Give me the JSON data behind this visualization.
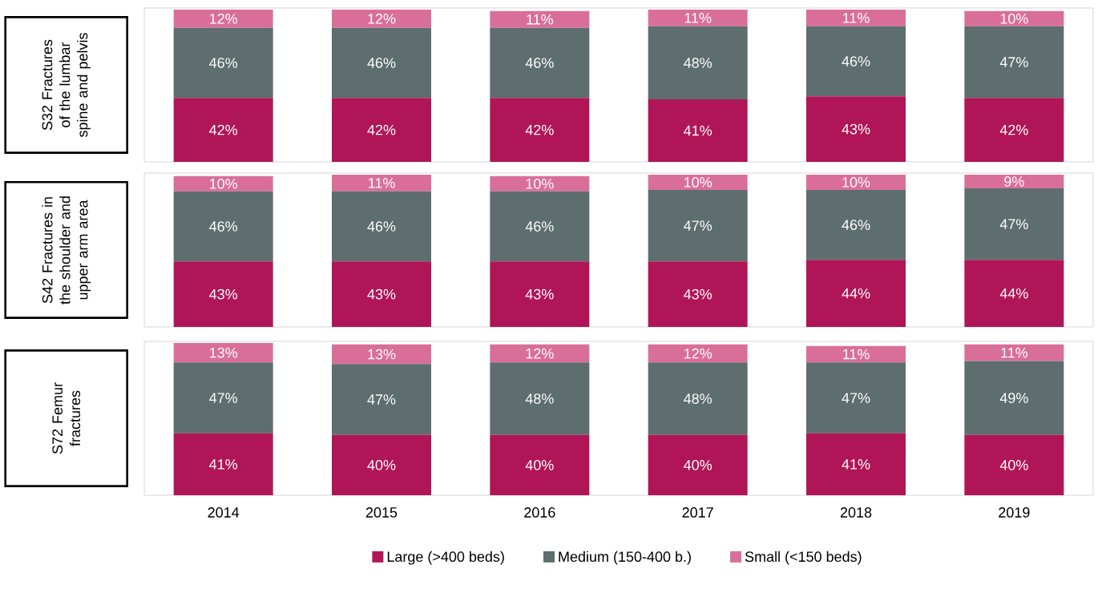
{
  "chart_data": [
    {
      "type": "bar",
      "stacked": true,
      "ylabel": "S32 Fractures of the lumbar spine and pelvis",
      "categories": [
        "2014",
        "2015",
        "2016",
        "2017",
        "2018",
        "2019"
      ],
      "tick_labels": false,
      "series": [
        {
          "color": "#b01657",
          "values": [
            42,
            42,
            42,
            41,
            43,
            42
          ],
          "value_labels": [
            "42%",
            "42%",
            "42%",
            "41%",
            "43%",
            "42%"
          ]
        },
        {
          "color": "#5e6d6d",
          "values": [
            46,
            46,
            46,
            48,
            46,
            47
          ],
          "value_labels": [
            "46%",
            "46%",
            "46%",
            "48%",
            "46%",
            "47%"
          ]
        },
        {
          "color": "#d96f99",
          "values": [
            12,
            12,
            11,
            11,
            11,
            10
          ],
          "value_labels": [
            "12%",
            "12%",
            "11%",
            "11%",
            "11%",
            "10%"
          ]
        }
      ]
    },
    {
      "type": "bar",
      "stacked": true,
      "ylabel": "S42 Fractures in the shoulder and upper arm area",
      "categories": [
        "2014",
        "2015",
        "2016",
        "2017",
        "2018",
        "2019"
      ],
      "tick_labels": false,
      "series": [
        {
          "color": "#b01657",
          "values": [
            43,
            43,
            43,
            43,
            44,
            44
          ],
          "value_labels": [
            "43%",
            "43%",
            "43%",
            "43%",
            "44%",
            "44%"
          ]
        },
        {
          "color": "#5e6d6d",
          "values": [
            46,
            46,
            46,
            47,
            46,
            47
          ],
          "value_labels": [
            "46%",
            "46%",
            "46%",
            "47%",
            "46%",
            "47%"
          ]
        },
        {
          "color": "#d96f99",
          "values": [
            10,
            11,
            10,
            10,
            10,
            9
          ],
          "value_labels": [
            "10%",
            "11%",
            "10%",
            "10%",
            "10%",
            "9%"
          ]
        }
      ]
    },
    {
      "type": "bar",
      "stacked": true,
      "ylabel": "S72 Femur fractures",
      "categories": [
        "2014",
        "2015",
        "2016",
        "2017",
        "2018",
        "2019"
      ],
      "tick_labels": "x",
      "legend": "bottom",
      "series": [
        {
          "name": "Large (>400 beds)",
          "color": "#b01657",
          "values": [
            41,
            40,
            40,
            40,
            41,
            40
          ],
          "value_labels": [
            "41%",
            "40%",
            "40%",
            "40%",
            "41%",
            "40%"
          ]
        },
        {
          "name": "Medium (150-400 b.)",
          "color": "#5e6d6d",
          "values": [
            47,
            47,
            48,
            48,
            47,
            49
          ],
          "value_labels": [
            "47%",
            "47%",
            "48%",
            "48%",
            "47%",
            "49%"
          ]
        },
        {
          "name": "Small (<150 beds)",
          "color": "#d96f99",
          "values": [
            13,
            13,
            12,
            12,
            11,
            11
          ],
          "value_labels": [
            "13%",
            "13%",
            "12%",
            "12%",
            "11%",
            "11%"
          ]
        }
      ]
    }
  ]
}
